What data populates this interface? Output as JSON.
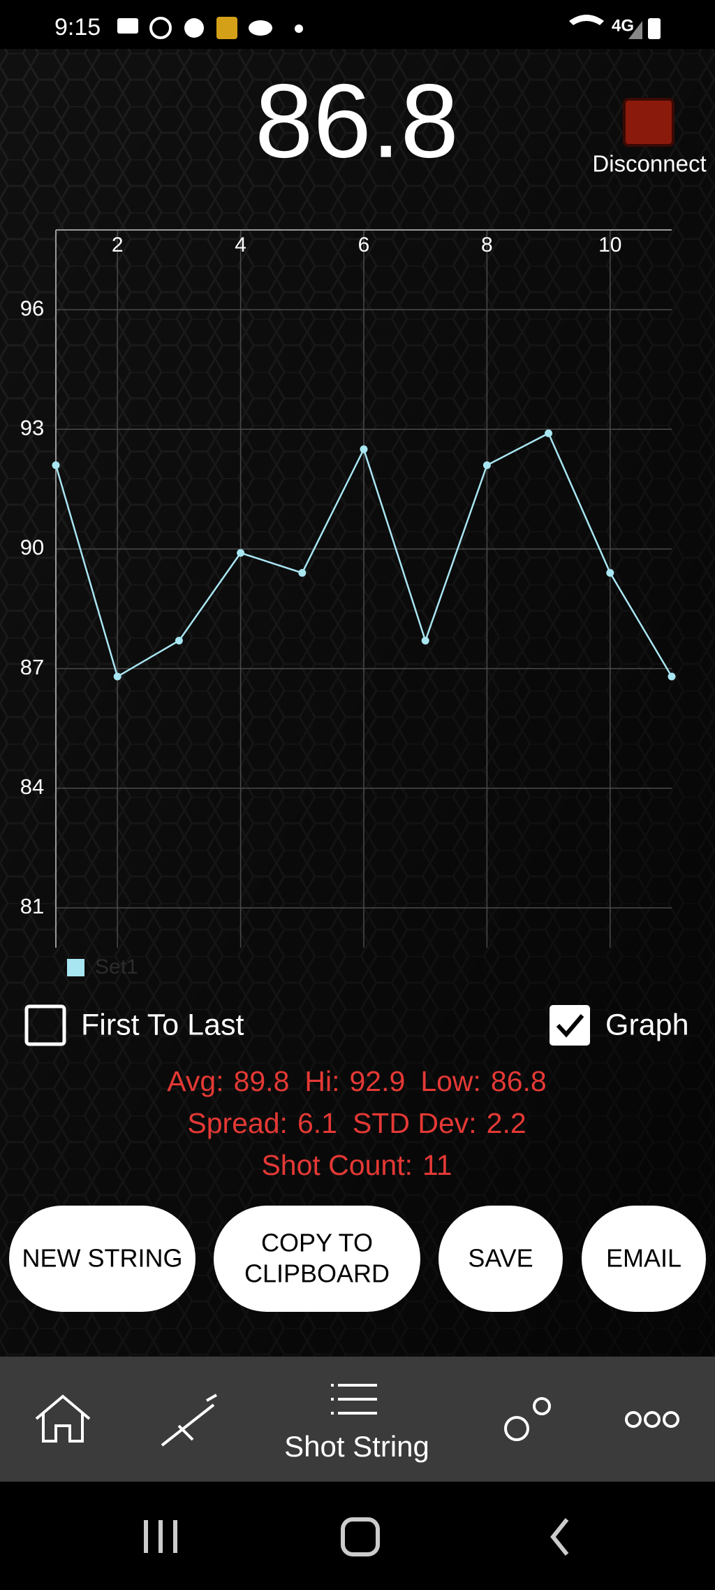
{
  "status_bar": {
    "time": "9:15"
  },
  "header": {
    "reading": "86.8",
    "disconnect": "Disconnect"
  },
  "chart_data": {
    "type": "line",
    "x": [
      1,
      2,
      3,
      4,
      5,
      6,
      7,
      8,
      9,
      10,
      11
    ],
    "series": [
      {
        "name": "Set1",
        "color": "#a8e6f2",
        "values": [
          92.1,
          86.8,
          87.7,
          89.9,
          89.4,
          92.5,
          87.7,
          92.1,
          92.9,
          89.4,
          86.8
        ]
      }
    ],
    "xlim": [
      1,
      11
    ],
    "xticks": [
      2,
      4,
      6,
      8,
      10
    ],
    "ylim": [
      80,
      98
    ],
    "yticks": [
      81,
      84,
      87,
      90,
      93,
      96
    ],
    "grid": true,
    "legend": "bottom-left"
  },
  "options": [
    {
      "label": "First To Last",
      "checked": false
    },
    {
      "label": "Graph",
      "checked": true
    }
  ],
  "stats": [
    [
      {
        "label": "Avg:",
        "value": "89.8"
      },
      {
        "label": "Hi:",
        "value": "92.9"
      },
      {
        "label": "Low:",
        "value": "86.8"
      }
    ],
    [
      {
        "label": "Spread:",
        "value": "6.1"
      },
      {
        "label": "STD Dev:",
        "value": "2.2"
      }
    ],
    [
      {
        "label": "Shot Count:",
        "value": "11"
      }
    ]
  ],
  "buttons": [
    {
      "lines": [
        "NEW STRING"
      ]
    },
    {
      "lines": [
        "COPY TO",
        "CLIPBOARD"
      ]
    },
    {
      "lines": [
        "SAVE"
      ]
    },
    {
      "lines": [
        "EMAIL"
      ]
    }
  ],
  "nav": {
    "active_label": "Shot String"
  }
}
